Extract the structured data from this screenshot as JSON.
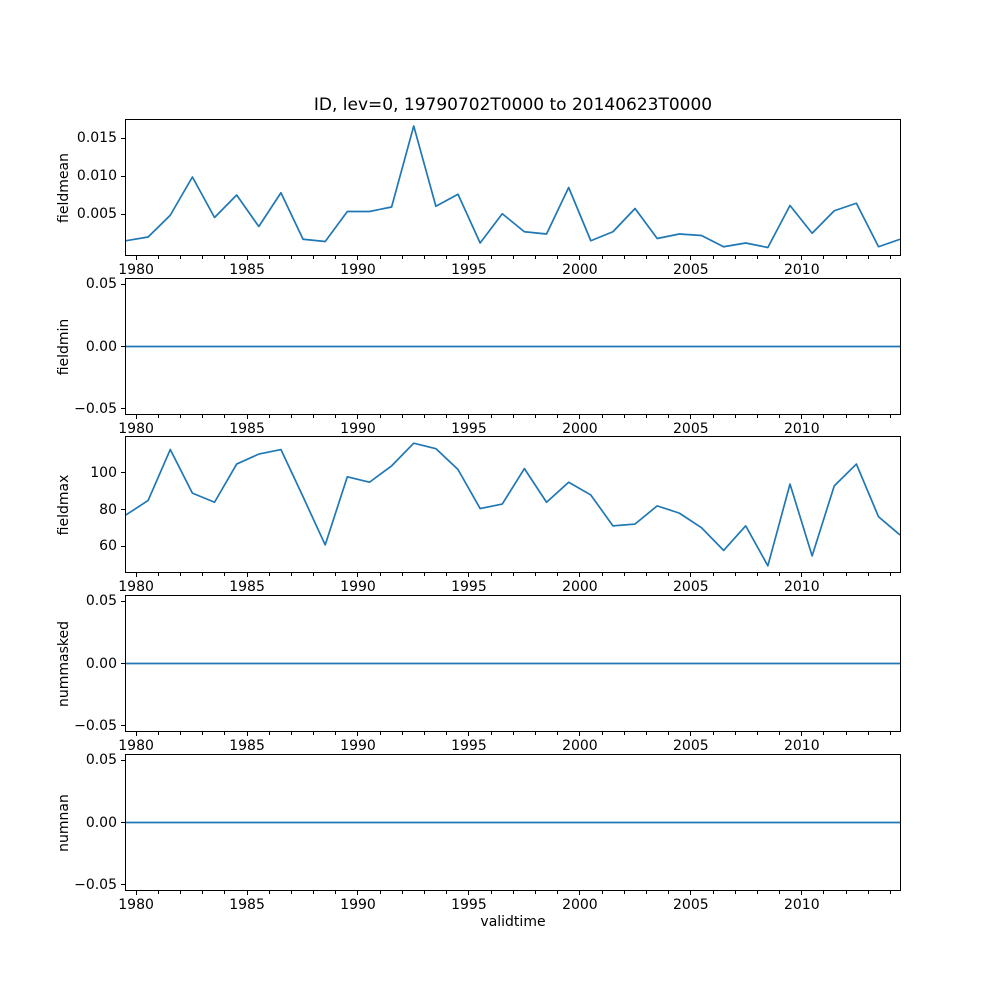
{
  "title": "ID, lev=0, 19790702T0000 to 20140623T0000",
  "xlabel": "validtime",
  "chart_data": {
    "type": "line",
    "title": "ID, lev=0, 19790702T0000 to 20140623T0000",
    "xlabel": "validtime",
    "grid": false,
    "legend": "none",
    "line_color": "#1f77b4",
    "axis_color": "#000000",
    "background_color": "#ffffff",
    "xlim": [
      1979.5,
      2014.47
    ],
    "x_major_ticks": [
      1980,
      1985,
      1990,
      1995,
      2000,
      2005,
      2010
    ],
    "x_major_tick_labels": [
      "1980",
      "1985",
      "1990",
      "1995",
      "2000",
      "2005",
      "2010"
    ],
    "x_minor_ticks_every": 1,
    "x": [
      1979.5,
      1980.5,
      1981.5,
      1982.5,
      1983.5,
      1984.5,
      1985.5,
      1986.5,
      1987.5,
      1988.5,
      1989.5,
      1990.5,
      1991.5,
      1992.5,
      1993.5,
      1994.5,
      1995.5,
      1996.5,
      1997.5,
      1998.5,
      1999.5,
      2000.5,
      2001.5,
      2002.5,
      2003.5,
      2004.5,
      2005.5,
      2006.5,
      2007.5,
      2008.5,
      2009.5,
      2010.5,
      2011.5,
      2012.5,
      2013.5,
      2014.47
    ],
    "subplots": [
      {
        "ylabel": "fieldmean",
        "ylim": [
          -0.0005,
          0.0175
        ],
        "yticks": [
          0.005,
          0.01,
          0.015
        ],
        "ytick_labels": [
          "0.005",
          "0.010",
          "0.015"
        ],
        "values": [
          0.0014,
          0.0019,
          0.0048,
          0.0099,
          0.0045,
          0.0075,
          0.0033,
          0.0078,
          0.0016,
          0.0013,
          0.0053,
          0.0053,
          0.0059,
          0.0167,
          0.006,
          0.0076,
          0.0011,
          0.005,
          0.0026,
          0.0023,
          0.0085,
          0.0014,
          0.0026,
          0.0057,
          0.0017,
          0.0023,
          0.0021,
          0.0006,
          0.0011,
          0.0005,
          0.0061,
          0.0024,
          0.0054,
          0.0064,
          0.0006,
          0.0016
        ]
      },
      {
        "ylabel": "fieldmin",
        "ylim": [
          -0.055,
          0.055
        ],
        "yticks": [
          -0.05,
          0.0,
          0.05
        ],
        "ytick_labels": [
          "−0.05",
          "0.00",
          "0.05"
        ],
        "values": [
          0,
          0,
          0,
          0,
          0,
          0,
          0,
          0,
          0,
          0,
          0,
          0,
          0,
          0,
          0,
          0,
          0,
          0,
          0,
          0,
          0,
          0,
          0,
          0,
          0,
          0,
          0,
          0,
          0,
          0,
          0,
          0,
          0,
          0,
          0,
          0
        ]
      },
      {
        "ylabel": "fieldmax",
        "ylim": [
          45.6,
          119.9
        ],
        "yticks": [
          60,
          80,
          100
        ],
        "ytick_labels": [
          "60",
          "80",
          "100"
        ],
        "values": [
          77,
          85,
          113,
          89,
          84,
          105,
          110.5,
          113,
          87,
          60.5,
          98,
          95,
          104,
          116.5,
          113.5,
          102,
          80.5,
          83,
          102.5,
          84,
          95,
          88,
          71,
          72,
          82,
          78,
          70,
          57.5,
          71,
          49,
          94,
          54.5,
          93,
          105,
          76,
          66
        ]
      },
      {
        "ylabel": "nummasked",
        "ylim": [
          -0.055,
          0.055
        ],
        "yticks": [
          -0.05,
          0.0,
          0.05
        ],
        "ytick_labels": [
          "−0.05",
          "0.00",
          "0.05"
        ],
        "values": [
          0,
          0,
          0,
          0,
          0,
          0,
          0,
          0,
          0,
          0,
          0,
          0,
          0,
          0,
          0,
          0,
          0,
          0,
          0,
          0,
          0,
          0,
          0,
          0,
          0,
          0,
          0,
          0,
          0,
          0,
          0,
          0,
          0,
          0,
          0,
          0
        ]
      },
      {
        "ylabel": "numnan",
        "ylim": [
          -0.055,
          0.055
        ],
        "yticks": [
          -0.05,
          0.0,
          0.05
        ],
        "ytick_labels": [
          "−0.05",
          "0.00",
          "0.05"
        ],
        "values": [
          0,
          0,
          0,
          0,
          0,
          0,
          0,
          0,
          0,
          0,
          0,
          0,
          0,
          0,
          0,
          0,
          0,
          0,
          0,
          0,
          0,
          0,
          0,
          0,
          0,
          0,
          0,
          0,
          0,
          0,
          0,
          0,
          0,
          0,
          0,
          0
        ]
      }
    ]
  }
}
